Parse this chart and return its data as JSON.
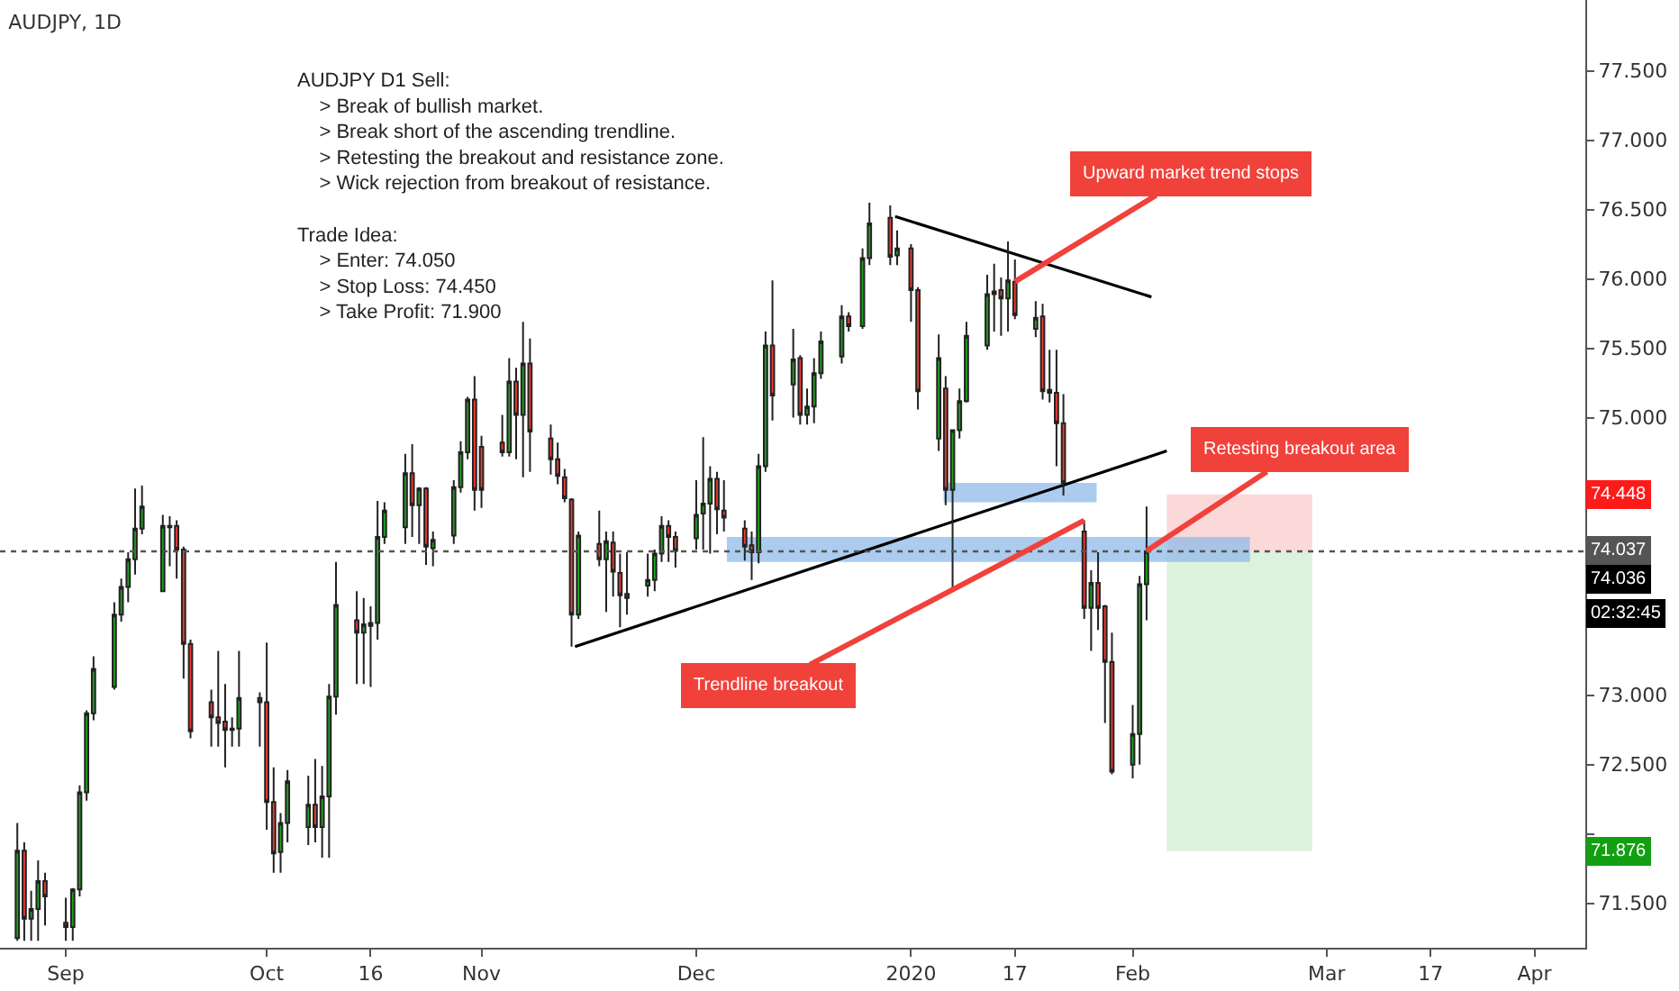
{
  "chart_data": {
    "type": "candlestick",
    "title": "AUDJPY, 1D",
    "x": [
      "2019-08-26",
      "2019-08-27",
      "2019-08-28",
      "2019-08-29",
      "2019-08-30",
      "2019-09-02",
      "2019-09-03",
      "2019-09-04",
      "2019-09-05",
      "2019-09-06",
      "2019-09-09",
      "2019-09-10",
      "2019-09-11",
      "2019-09-12",
      "2019-09-13",
      "2019-09-16",
      "2019-09-17",
      "2019-09-18",
      "2019-09-19",
      "2019-09-20",
      "2019-09-23",
      "2019-09-24",
      "2019-09-25",
      "2019-09-26",
      "2019-09-27",
      "2019-09-30",
      "2019-10-01",
      "2019-10-02",
      "2019-10-03",
      "2019-10-04",
      "2019-10-07",
      "2019-10-08",
      "2019-10-09",
      "2019-10-10",
      "2019-10-11",
      "2019-10-14",
      "2019-10-15",
      "2019-10-16",
      "2019-10-17",
      "2019-10-18",
      "2019-10-21",
      "2019-10-22",
      "2019-10-23",
      "2019-10-24",
      "2019-10-25",
      "2019-10-28",
      "2019-10-29",
      "2019-10-30",
      "2019-10-31",
      "2019-11-01",
      "2019-11-04",
      "2019-11-05",
      "2019-11-06",
      "2019-11-07",
      "2019-11-08",
      "2019-11-11",
      "2019-11-12",
      "2019-11-13",
      "2019-11-14",
      "2019-11-15",
      "2019-11-18",
      "2019-11-19",
      "2019-11-20",
      "2019-11-21",
      "2019-11-22",
      "2019-11-25",
      "2019-11-26",
      "2019-11-27",
      "2019-11-28",
      "2019-11-29",
      "2019-12-02",
      "2019-12-03",
      "2019-12-04",
      "2019-12-05",
      "2019-12-06",
      "2019-12-09",
      "2019-12-10",
      "2019-12-11",
      "2019-12-12",
      "2019-12-13",
      "2019-12-16",
      "2019-12-17",
      "2019-12-18",
      "2019-12-19",
      "2019-12-20",
      "2019-12-23",
      "2019-12-24",
      "2019-12-26",
      "2019-12-27",
      "2019-12-30",
      "2019-12-31",
      "2020-01-02",
      "2020-01-03",
      "2020-01-06",
      "2020-01-07",
      "2020-01-08",
      "2020-01-09",
      "2020-01-10",
      "2020-01-13",
      "2020-01-14",
      "2020-01-15",
      "2020-01-16",
      "2020-01-17",
      "2020-01-20",
      "2020-01-21",
      "2020-01-22",
      "2020-01-23",
      "2020-01-24",
      "2020-01-27",
      "2020-01-28",
      "2020-01-29",
      "2020-01-30",
      "2020-01-31",
      "2020-02-03",
      "2020-02-04",
      "2020-02-05"
    ],
    "ohlc": [
      [
        71.25,
        72.08,
        71.23,
        71.88
      ],
      [
        71.88,
        71.94,
        71.23,
        71.39
      ],
      [
        71.39,
        71.59,
        71.23,
        71.46
      ],
      [
        71.46,
        71.81,
        71.23,
        71.66
      ],
      [
        71.66,
        71.72,
        71.34,
        71.55
      ],
      [
        71.36,
        71.54,
        71.23,
        71.33
      ],
      [
        71.33,
        71.61,
        71.23,
        71.6
      ],
      [
        71.6,
        72.35,
        71.55,
        72.3
      ],
      [
        72.3,
        72.89,
        72.24,
        72.87
      ],
      [
        72.87,
        73.28,
        72.82,
        73.19
      ],
      [
        73.06,
        73.67,
        73.04,
        73.58
      ],
      [
        73.58,
        73.84,
        73.53,
        73.78
      ],
      [
        73.78,
        74.03,
        73.67,
        73.98
      ],
      [
        73.98,
        74.49,
        73.87,
        74.2
      ],
      [
        74.2,
        74.51,
        74.16,
        74.36
      ],
      [
        73.75,
        74.3,
        73.75,
        74.22
      ],
      [
        74.22,
        74.29,
        73.93,
        74.21
      ],
      [
        74.22,
        74.26,
        73.84,
        74.05
      ],
      [
        74.05,
        74.07,
        73.12,
        73.37
      ],
      [
        73.37,
        73.4,
        72.69,
        72.74
      ],
      [
        72.95,
        73.04,
        72.63,
        72.84
      ],
      [
        72.84,
        73.32,
        72.63,
        72.8
      ],
      [
        72.81,
        73.08,
        72.48,
        72.75
      ],
      [
        72.75,
        72.84,
        72.63,
        72.76
      ],
      [
        72.76,
        73.32,
        72.63,
        72.98
      ],
      [
        72.98,
        73.02,
        72.63,
        72.95
      ],
      [
        72.95,
        73.38,
        72.03,
        72.23
      ],
      [
        72.23,
        72.48,
        71.72,
        71.86
      ],
      [
        71.87,
        72.15,
        71.72,
        72.08
      ],
      [
        72.08,
        72.46,
        71.94,
        72.38
      ],
      [
        72.05,
        72.42,
        71.92,
        72.21
      ],
      [
        72.21,
        72.54,
        71.94,
        72.05
      ],
      [
        72.05,
        72.49,
        71.83,
        72.27
      ],
      [
        72.27,
        73.08,
        71.83,
        72.99
      ],
      [
        72.99,
        73.96,
        72.86,
        73.65
      ],
      [
        73.54,
        73.75,
        73.08,
        73.45
      ],
      [
        73.45,
        73.7,
        73.08,
        73.51
      ],
      [
        73.5,
        73.64,
        73.06,
        73.52
      ],
      [
        73.52,
        74.4,
        73.4,
        74.14
      ],
      [
        74.14,
        74.39,
        74.09,
        74.33
      ],
      [
        74.21,
        74.74,
        74.09,
        74.6
      ],
      [
        74.6,
        74.81,
        74.14,
        74.37
      ],
      [
        74.37,
        74.5,
        74.09,
        74.49
      ],
      [
        74.49,
        74.5,
        73.94,
        74.07
      ],
      [
        74.06,
        74.18,
        73.93,
        74.12
      ],
      [
        74.15,
        74.55,
        74.09,
        74.5
      ],
      [
        74.5,
        74.83,
        74.46,
        74.75
      ],
      [
        74.75,
        75.15,
        74.7,
        75.13
      ],
      [
        75.13,
        75.3,
        74.33,
        74.48
      ],
      [
        74.79,
        74.87,
        74.35,
        74.48
      ],
      [
        74.82,
        75.02,
        74.72,
        74.75
      ],
      [
        74.75,
        75.43,
        74.72,
        75.26
      ],
      [
        75.26,
        75.36,
        74.7,
        75.02
      ],
      [
        75.02,
        75.69,
        74.57,
        75.39
      ],
      [
        75.39,
        75.57,
        74.61,
        74.9
      ],
      [
        74.85,
        74.95,
        74.59,
        74.7
      ],
      [
        74.7,
        74.82,
        74.52,
        74.58
      ],
      [
        74.57,
        74.63,
        74.39,
        74.42
      ],
      [
        74.41,
        74.42,
        73.35,
        73.58
      ],
      [
        73.58,
        74.18,
        73.55,
        74.15
      ],
      [
        74.09,
        74.33,
        73.93,
        73.98
      ],
      [
        73.98,
        74.18,
        73.6,
        74.11
      ],
      [
        74.1,
        74.18,
        73.71,
        73.89
      ],
      [
        73.88,
        74.02,
        73.49,
        73.72
      ],
      [
        73.73,
        74.03,
        73.58,
        73.7
      ],
      [
        73.79,
        74.02,
        73.71,
        73.83
      ],
      [
        73.83,
        74.05,
        73.75,
        74.02
      ],
      [
        74.02,
        74.29,
        73.96,
        74.22
      ],
      [
        74.22,
        74.26,
        73.96,
        74.14
      ],
      [
        74.14,
        74.18,
        73.92,
        74.04
      ],
      [
        74.13,
        74.55,
        74.05,
        74.3
      ],
      [
        74.31,
        74.86,
        74.05,
        74.38
      ],
      [
        74.38,
        74.65,
        74.02,
        74.56
      ],
      [
        74.56,
        74.61,
        74.16,
        74.34
      ],
      [
        74.33,
        74.55,
        74.18,
        74.28
      ],
      [
        74.2,
        74.26,
        73.97,
        74.07
      ],
      [
        74.08,
        74.18,
        73.83,
        74.03
      ],
      [
        74.03,
        74.74,
        73.95,
        74.65
      ],
      [
        74.65,
        75.62,
        74.61,
        75.52
      ],
      [
        75.52,
        75.99,
        74.98,
        75.16
      ],
      [
        75.24,
        75.64,
        75.0,
        75.42
      ],
      [
        75.43,
        75.45,
        74.95,
        75.02
      ],
      [
        75.02,
        75.21,
        74.95,
        75.08
      ],
      [
        75.08,
        75.43,
        74.96,
        75.32
      ],
      [
        75.32,
        75.62,
        75.28,
        75.55
      ],
      [
        75.44,
        75.81,
        75.39,
        75.73
      ],
      [
        75.73,
        75.76,
        75.62,
        75.66
      ],
      [
        75.66,
        76.22,
        75.64,
        76.15
      ],
      [
        76.15,
        76.55,
        76.1,
        76.4
      ],
      [
        76.44,
        76.53,
        76.1,
        76.16
      ],
      [
        76.17,
        76.35,
        76.1,
        76.22
      ],
      [
        76.22,
        76.25,
        75.69,
        75.92
      ],
      [
        75.92,
        75.94,
        75.06,
        75.19
      ],
      [
        74.85,
        75.6,
        74.76,
        75.43
      ],
      [
        75.21,
        75.3,
        74.37,
        74.48
      ],
      [
        74.48,
        74.91,
        73.75,
        74.91
      ],
      [
        74.91,
        75.21,
        74.85,
        75.12
      ],
      [
        75.12,
        75.69,
        75.11,
        75.59
      ],
      [
        75.52,
        76.03,
        75.49,
        75.89
      ],
      [
        75.91,
        76.11,
        75.62,
        75.89
      ],
      [
        75.92,
        76.01,
        75.59,
        75.86
      ],
      [
        75.86,
        76.27,
        75.62,
        75.99
      ],
      [
        75.98,
        76.14,
        75.71,
        75.74
      ],
      [
        75.64,
        75.84,
        75.58,
        75.72
      ],
      [
        75.73,
        75.82,
        75.13,
        75.19
      ],
      [
        75.2,
        75.49,
        75.11,
        75.18
      ],
      [
        75.18,
        75.49,
        74.65,
        74.96
      ],
      [
        74.96,
        75.17,
        74.44,
        74.53
      ],
      [
        74.18,
        74.26,
        73.55,
        73.63
      ],
      [
        73.63,
        73.9,
        73.32,
        73.81
      ],
      [
        73.81,
        74.03,
        73.47,
        73.63
      ],
      [
        73.64,
        73.65,
        72.8,
        73.24
      ],
      [
        73.24,
        73.45,
        72.43,
        72.45
      ],
      [
        72.5,
        72.93,
        72.4,
        72.72
      ],
      [
        72.72,
        73.86,
        72.5,
        73.8
      ],
      [
        73.8,
        74.36,
        73.54,
        74.036
      ]
    ],
    "series": [
      {
        "type": "area",
        "color": "#f9cccc",
        "x": [
          "2020-02-07T22:00",
          "2020-02-28T22:00"
        ],
        "values": [
          null,
          null
        ],
        "lower": [
          74.037,
          74.037
        ],
        "upper": [
          74.448,
          74.448
        ]
      },
      {
        "type": "area",
        "color": "#d2eed2",
        "x": [
          "2020-02-07T22:00",
          "2020-02-28T22:00"
        ],
        "values": [
          null,
          null
        ],
        "lower": [
          71.876,
          71.876
        ],
        "upper": [
          74.037,
          74.037
        ]
      },
      {
        "type": "area",
        "color": "#8fbbe8",
        "x": [
          "2020-01-06T17:00",
          "2020-01-28T19:00"
        ],
        "values": [
          null,
          null
        ],
        "lower": [
          74.39,
          74.39
        ],
        "upper": [
          74.53,
          74.53
        ]
      },
      {
        "type": "area",
        "color": "#8fbbe8",
        "x": [
          "2019-12-06T10:00",
          "2020-02-19T22:00"
        ],
        "values": [
          null,
          null
        ],
        "lower": [
          73.96,
          73.96
        ],
        "upper": [
          74.14,
          74.14
        ]
      },
      {
        "type": "line",
        "color": "#000000",
        "x": [
          "2019-11-14T12:00",
          "2020-02-07T22:00"
        ],
        "values": [
          73.35,
          74.76
        ]
      },
      {
        "type": "line",
        "color": "#000000",
        "x": [
          "2019-12-30T17:00",
          "2020-02-05T17:00"
        ],
        "values": [
          76.45,
          75.87
        ]
      }
    ],
    "xlim": [
      "2019-08-23T12:00",
      "2020-04-08T08:00"
    ],
    "xticks": [
      {
        "value": "2019-09-02",
        "label": "Sep"
      },
      {
        "value": "2019-10-01",
        "label": "Oct"
      },
      {
        "value": "2019-10-16",
        "label": "16"
      },
      {
        "value": "2019-11-01",
        "label": "Nov"
      },
      {
        "value": "2019-12-02",
        "label": "Dec"
      },
      {
        "value": "2020-01-02",
        "label": "2020"
      },
      {
        "value": "2020-01-17",
        "label": "17"
      },
      {
        "value": "2020-02-03",
        "label": "Feb"
      },
      {
        "value": "2020-03-02",
        "label": "Mar"
      },
      {
        "value": "2020-03-17",
        "label": "17"
      },
      {
        "value": "2020-04-01",
        "label": "Apr"
      }
    ],
    "ylim": [
      71.18,
      78.01
    ],
    "yticks": [
      {
        "value": 71.5,
        "label": "71.500"
      },
      {
        "value": 72,
        "label": null
      },
      {
        "value": 72.5,
        "label": "72.500"
      },
      {
        "value": 73,
        "label": "73.000"
      },
      {
        "value": 73.5,
        "label": null
      },
      {
        "value": 74,
        "label": null
      },
      {
        "value": 74.5,
        "label": null
      },
      {
        "value": 75,
        "label": "75.000"
      },
      {
        "value": 75.5,
        "label": "75.500"
      },
      {
        "value": 76,
        "label": "76.000"
      },
      {
        "value": 76.5,
        "label": "76.500"
      },
      {
        "value": 77,
        "label": "77.000"
      },
      {
        "value": 77.5,
        "label": "77.500"
      }
    ],
    "ref_lines": [
      {
        "axis": "y",
        "value": 74.037,
        "label": "74.037",
        "color": "#555555",
        "line_style": "dotted"
      }
    ],
    "annotations": [
      "AUDJPY D1 Sell:\n    > Break of bullish market.\n    > Break short of the ascending trendline.\n    > Retesting the breakout and resistance zone.\n    > Wick rejection from breakout of resistance.\n\nTrade Idea:\n    > Enter: 74.050\n    > Stop Loss: 74.450\n    > Take Profit: 71.900",
      "02:32:45",
      {
        "text": "Upward market trend stops",
        "x": "2020-01-17",
        "y": 75.98
      },
      {
        "text": "Retesting breakout area",
        "x": "2020-02-05",
        "y": 74.04
      },
      {
        "text": "Trendline breakout",
        "x": "2020-01-27",
        "y": 74.26
      },
      "74.448",
      "74.036",
      "71.876"
    ]
  }
}
